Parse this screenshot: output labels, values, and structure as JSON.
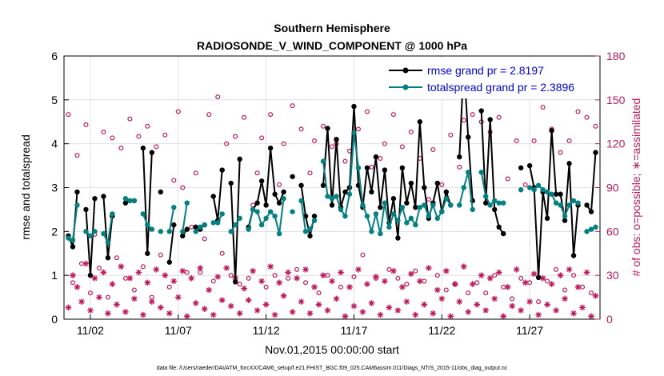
{
  "chart_data": {
    "type": "line",
    "title": "Southern Hemisphere",
    "subtitle": "RADIOSONDE_V_WIND_COMPONENT @ 1000 hPa",
    "xlabel": "Nov.01,2015 00:00:00 start",
    "ylabel": "rmse and totalspread",
    "y2label": "# of obs: o=possible; ∗=assimilated",
    "xlim": [
      0.5,
      31.0
    ],
    "ylim": [
      0,
      6
    ],
    "y2lim": [
      0,
      180
    ],
    "xticks": [
      2,
      7,
      12,
      17,
      22,
      27
    ],
    "xtick_labels": [
      "11/02",
      "11/07",
      "11/12",
      "11/17",
      "11/22",
      "11/27"
    ],
    "yticks": [
      0,
      1,
      2,
      3,
      4,
      5,
      6
    ],
    "y2ticks": [
      0,
      30,
      60,
      90,
      120,
      150,
      180
    ],
    "legend": [
      {
        "label": "rmse grand pr = 2.8197",
        "color": "#000000"
      },
      {
        "label": "totalspread grand pr = 2.3896",
        "color": "#008080"
      }
    ],
    "footer": "data file: /Users/raeder/DAI/ATM_forcXX/CAM6_setup/f.e21.FHIST_BGC.f09_025.CAM6assim.011/Diags_NTrS_2015-11/obs_diag_output.nc",
    "series": [
      {
        "name": "rmse",
        "color": "#000000",
        "x": [
          0.75,
          1.0,
          1.25,
          1.5,
          1.75,
          2.0,
          2.25,
          2.5,
          2.75,
          3.0,
          3.25,
          3.5,
          3.75,
          4.0,
          4.25,
          4.5,
          4.75,
          5.0,
          5.25,
          5.5,
          5.75,
          6.0,
          6.25,
          6.5,
          6.75,
          7.0,
          7.25,
          7.5,
          7.75,
          8.0,
          8.25,
          8.5,
          8.75,
          9.0,
          9.25,
          9.5,
          9.75,
          10.0,
          10.25,
          10.5,
          10.75,
          11.0,
          11.25,
          11.5,
          11.75,
          12.0,
          12.25,
          12.5,
          12.75,
          13.0,
          13.25,
          13.5,
          13.75,
          14.0,
          14.25,
          14.5,
          14.75,
          15.0,
          15.25,
          15.5,
          15.75,
          16.0,
          16.25,
          16.5,
          16.75,
          17.0,
          17.25,
          17.5,
          17.75,
          18.0,
          18.25,
          18.5,
          18.75,
          19.0,
          19.25,
          19.5,
          19.75,
          20.0,
          20.25,
          20.5,
          20.75,
          21.0,
          21.25,
          21.5,
          21.75,
          22.0,
          22.25,
          22.5,
          22.75,
          23.0,
          23.25,
          23.5,
          23.75,
          24.0,
          24.25,
          24.5,
          24.75,
          25.0,
          25.25,
          25.5,
          25.75,
          26.0,
          26.25,
          26.5,
          26.75,
          27.0,
          27.25,
          27.5,
          27.75,
          28.0,
          28.25,
          28.5,
          28.75,
          29.0,
          29.25,
          29.5,
          29.75,
          30.0,
          30.25,
          30.5,
          30.75
        ],
        "y": [
          1.9,
          1.65,
          2.9,
          null,
          2.5,
          1.0,
          2.75,
          null,
          2.8,
          1.4,
          2.35,
          null,
          null,
          2.65,
          2.7,
          2.7,
          null,
          3.9,
          1.5,
          3.8,
          null,
          2.9,
          null,
          1.3,
          2.15,
          null,
          1.9,
          2.05,
          null,
          2.1,
          2.05,
          2.15,
          null,
          2.8,
          2.25,
          3.4,
          null,
          3.1,
          0.85,
          3.65,
          null,
          2.1,
          2.5,
          2.65,
          3.15,
          2.6,
          3.9,
          2.85,
          2.65,
          2.9,
          null,
          3.25,
          null,
          3.05,
          2.35,
          1.9,
          2.35,
          null,
          3.05,
          4.35,
          2.6,
          4.1,
          2.55,
          2.9,
          3.0,
          4.85,
          3.05,
          2.55,
          3.45,
          2.9,
          3.7,
          2.55,
          3.4,
          2.2,
          2.75,
          1.85,
          3.45,
          2.65,
          3.1,
          2.55,
          4.5,
          3.0,
          2.3,
          2.65,
          3.1,
          2.45,
          2.9,
          2.6,
          null,
          3.7,
          5.85,
          4.15,
          2.7,
          null,
          4.75,
          2.65,
          4.55,
          2.5,
          2.1,
          1.95,
          null,
          null,
          null,
          3.45,
          null,
          3.5,
          3.0,
          0.95,
          2.9,
          2.3,
          4.3,
          2.85,
          2.85,
          2.25,
          3.55,
          1.45,
          2.6,
          null,
          2.6,
          2.45,
          3.8
        ]
      },
      {
        "name": "totalspread",
        "color": "#008080",
        "x": [
          0.75,
          1.0,
          1.25,
          1.5,
          1.75,
          2.0,
          2.25,
          2.5,
          2.75,
          3.0,
          3.25,
          3.5,
          3.75,
          4.0,
          4.25,
          4.5,
          4.75,
          5.0,
          5.25,
          5.5,
          5.75,
          6.0,
          6.25,
          6.5,
          6.75,
          7.0,
          7.25,
          7.5,
          7.75,
          8.0,
          8.25,
          8.5,
          8.75,
          9.0,
          9.25,
          9.5,
          9.75,
          10.0,
          10.25,
          10.5,
          10.75,
          11.0,
          11.25,
          11.5,
          11.75,
          12.0,
          12.25,
          12.5,
          12.75,
          13.0,
          13.25,
          13.5,
          13.75,
          14.0,
          14.25,
          14.5,
          14.75,
          15.0,
          15.25,
          15.5,
          15.75,
          16.0,
          16.25,
          16.5,
          16.75,
          17.0,
          17.25,
          17.5,
          17.75,
          18.0,
          18.25,
          18.5,
          18.75,
          19.0,
          19.25,
          19.5,
          19.75,
          20.0,
          20.25,
          20.5,
          20.75,
          21.0,
          21.25,
          21.5,
          21.75,
          22.0,
          22.25,
          22.5,
          22.75,
          23.0,
          23.25,
          23.5,
          23.75,
          24.0,
          24.25,
          24.5,
          24.75,
          25.0,
          25.25,
          25.5,
          25.75,
          26.0,
          26.25,
          26.5,
          26.75,
          27.0,
          27.25,
          27.5,
          27.75,
          28.0,
          28.25,
          28.5,
          28.75,
          29.0,
          29.25,
          29.5,
          29.75,
          30.0,
          30.25,
          30.5,
          30.75
        ],
        "y": [
          1.85,
          1.8,
          2.6,
          null,
          2.0,
          1.9,
          2.0,
          null,
          1.95,
          1.75,
          2.4,
          null,
          null,
          2.75,
          2.7,
          2.7,
          null,
          2.4,
          2.15,
          2.05,
          null,
          2.0,
          null,
          2.0,
          2.55,
          null,
          2.0,
          2.65,
          null,
          2.0,
          2.1,
          2.15,
          null,
          2.2,
          2.2,
          2.4,
          null,
          2.0,
          2.15,
          2.3,
          null,
          2.05,
          2.5,
          2.45,
          2.15,
          2.3,
          2.45,
          2.35,
          1.95,
          2.75,
          null,
          2.45,
          null,
          2.7,
          2.0,
          2.05,
          2.25,
          null,
          3.6,
          2.8,
          2.75,
          2.8,
          2.5,
          2.35,
          2.85,
          4.25,
          3.45,
          2.6,
          2.35,
          2.0,
          2.4,
          1.95,
          2.65,
          2.1,
          2.4,
          2.25,
          2.55,
          2.2,
          2.3,
          2.15,
          2.55,
          2.6,
          2.35,
          2.6,
          2.3,
          2.45,
          2.75,
          2.6,
          null,
          2.6,
          3.0,
          3.35,
          2.5,
          null,
          3.35,
          2.8,
          2.6,
          2.7,
          2.65,
          2.65,
          null,
          null,
          null,
          2.95,
          null,
          3.0,
          2.95,
          3.05,
          2.95,
          2.9,
          2.85,
          2.65,
          2.6,
          2.35,
          2.6,
          2.7,
          2.65,
          null,
          2.0,
          2.05,
          2.1
        ]
      },
      {
        "name": "obs possible",
        "color": "#c2185b",
        "marker": "o",
        "axis": "right",
        "x": [
          0.75,
          1.0,
          1.25,
          1.5,
          1.75,
          2.0,
          2.25,
          2.5,
          2.75,
          3.0,
          3.25,
          3.5,
          3.75,
          4.0,
          4.25,
          4.5,
          4.75,
          5.0,
          5.25,
          5.5,
          5.75,
          6.0,
          6.25,
          6.5,
          6.75,
          7.0,
          7.25,
          7.5,
          7.75,
          8.0,
          8.25,
          8.5,
          8.75,
          9.0,
          9.25,
          9.5,
          9.75,
          10.0,
          10.25,
          10.5,
          10.75,
          11.0,
          11.25,
          11.5,
          11.75,
          12.0,
          12.25,
          12.5,
          12.75,
          13.0,
          13.25,
          13.5,
          13.75,
          14.0,
          14.25,
          14.5,
          14.75,
          15.0,
          15.25,
          15.5,
          15.75,
          16.0,
          16.25,
          16.5,
          16.75,
          17.0,
          17.25,
          17.5,
          17.75,
          18.0,
          18.25,
          18.5,
          18.75,
          19.0,
          19.25,
          19.5,
          19.75,
          20.0,
          20.25,
          20.5,
          20.75,
          21.0,
          21.25,
          21.5,
          21.75,
          22.0,
          22.25,
          22.5,
          22.75,
          23.0,
          23.25,
          23.5,
          23.75,
          24.0,
          24.25,
          24.5,
          24.75,
          25.0,
          25.25,
          25.5,
          25.75,
          26.0,
          26.25,
          26.5,
          26.75,
          27.0,
          27.25,
          27.5,
          27.75,
          28.0,
          28.25,
          28.5,
          28.75,
          29.0,
          29.25,
          29.5,
          29.75,
          30.0,
          30.25,
          30.5,
          30.75
        ],
        "y": [
          140,
          25,
          112,
          38,
          133,
          18,
          58,
          35,
          128,
          15,
          124,
          42,
          117,
          28,
          137,
          20,
          125,
          36,
          132,
          15,
          118,
          44,
          126,
          22,
          95,
          142,
          90,
          32,
          63,
          100,
          32,
          55,
          140,
          26,
          152,
          45,
          120,
          30,
          125,
          24,
          138,
          28,
          78,
          100,
          124,
          22,
          140,
          30,
          92,
          120,
          28,
          146,
          34,
          130,
          25,
          100,
          122,
          18,
          132,
          30,
          118,
          120,
          22,
          108,
          115,
          29,
          130,
          44,
          142,
          104,
          28,
          110,
          120,
          34,
          140,
          28,
          118,
          24,
          128,
          33,
          110,
          26,
          82,
          116,
          30,
          92,
          20,
          126,
          24,
          104,
          136,
          18,
          140,
          25,
          135,
          18,
          128,
          30,
          138,
          22,
          96,
          14,
          122,
          28,
          92,
          25,
          122,
          12,
          145,
          26,
          130,
          34,
          114,
          20,
          122,
          30,
          142,
          22,
          138,
          18,
          132
        ],
        "values_note": "number of observations possible, right axis"
      },
      {
        "name": "obs assimilated",
        "color": "#c2185b",
        "marker": "*",
        "axis": "right",
        "x": [
          0.75,
          1.0,
          1.25,
          1.5,
          1.75,
          2.0,
          2.25,
          2.5,
          2.75,
          3.0,
          3.25,
          3.5,
          3.75,
          4.0,
          4.25,
          4.5,
          4.75,
          5.0,
          5.25,
          5.5,
          5.75,
          6.0,
          6.25,
          6.5,
          6.75,
          7.0,
          7.25,
          7.5,
          7.75,
          8.0,
          8.25,
          8.5,
          8.75,
          9.0,
          9.25,
          9.5,
          9.75,
          10.0,
          10.25,
          10.5,
          10.75,
          11.0,
          11.25,
          11.5,
          11.75,
          12.0,
          12.25,
          12.5,
          12.75,
          13.0,
          13.25,
          13.5,
          13.75,
          14.0,
          14.25,
          14.5,
          14.75,
          15.0,
          15.25,
          15.5,
          15.75,
          16.0,
          16.25,
          16.5,
          16.75,
          17.0,
          17.25,
          17.5,
          17.75,
          18.0,
          18.25,
          18.5,
          18.75,
          19.0,
          19.25,
          19.5,
          19.75,
          20.0,
          20.25,
          20.5,
          20.75,
          21.0,
          21.25,
          21.5,
          21.75,
          22.0,
          22.25,
          22.5,
          22.75,
          23.0,
          23.25,
          23.5,
          23.75,
          24.0,
          24.25,
          24.5,
          24.75,
          25.0,
          25.25,
          25.5,
          25.75,
          26.0,
          26.25,
          26.5,
          26.75,
          27.0,
          27.25,
          27.5,
          27.75,
          28.0,
          28.25,
          28.5,
          28.75,
          29.0,
          29.25,
          29.5,
          29.75,
          30.0,
          30.25,
          30.5,
          30.75
        ],
        "y": [
          8,
          30,
          22,
          12,
          38,
          6,
          28,
          15,
          32,
          4,
          24,
          10,
          36,
          5,
          28,
          14,
          32,
          3,
          25,
          12,
          34,
          8,
          30,
          4,
          26,
          15,
          33,
          2,
          28,
          11,
          35,
          7,
          20,
          3,
          29,
          13,
          35,
          9,
          28,
          4,
          21,
          13,
          33,
          6,
          26,
          10,
          36,
          3,
          25,
          16,
          32,
          5,
          28,
          12,
          34,
          4,
          22,
          10,
          30,
          6,
          26,
          14,
          32,
          2,
          22,
          9,
          34,
          5,
          24,
          11,
          29,
          3,
          26,
          8,
          33,
          6,
          22,
          12,
          31,
          3,
          26,
          10,
          35,
          4,
          20,
          14,
          33,
          2,
          24,
          12,
          36,
          5,
          24,
          10,
          30,
          6,
          28,
          14,
          32,
          2,
          22,
          9,
          34,
          6,
          25,
          12,
          31,
          3,
          28,
          10,
          24,
          6,
          30,
          14,
          34,
          4,
          22,
          8,
          32,
          2,
          16
        ],
        "values_note": "number of observations assimilated, right axis"
      }
    ]
  }
}
